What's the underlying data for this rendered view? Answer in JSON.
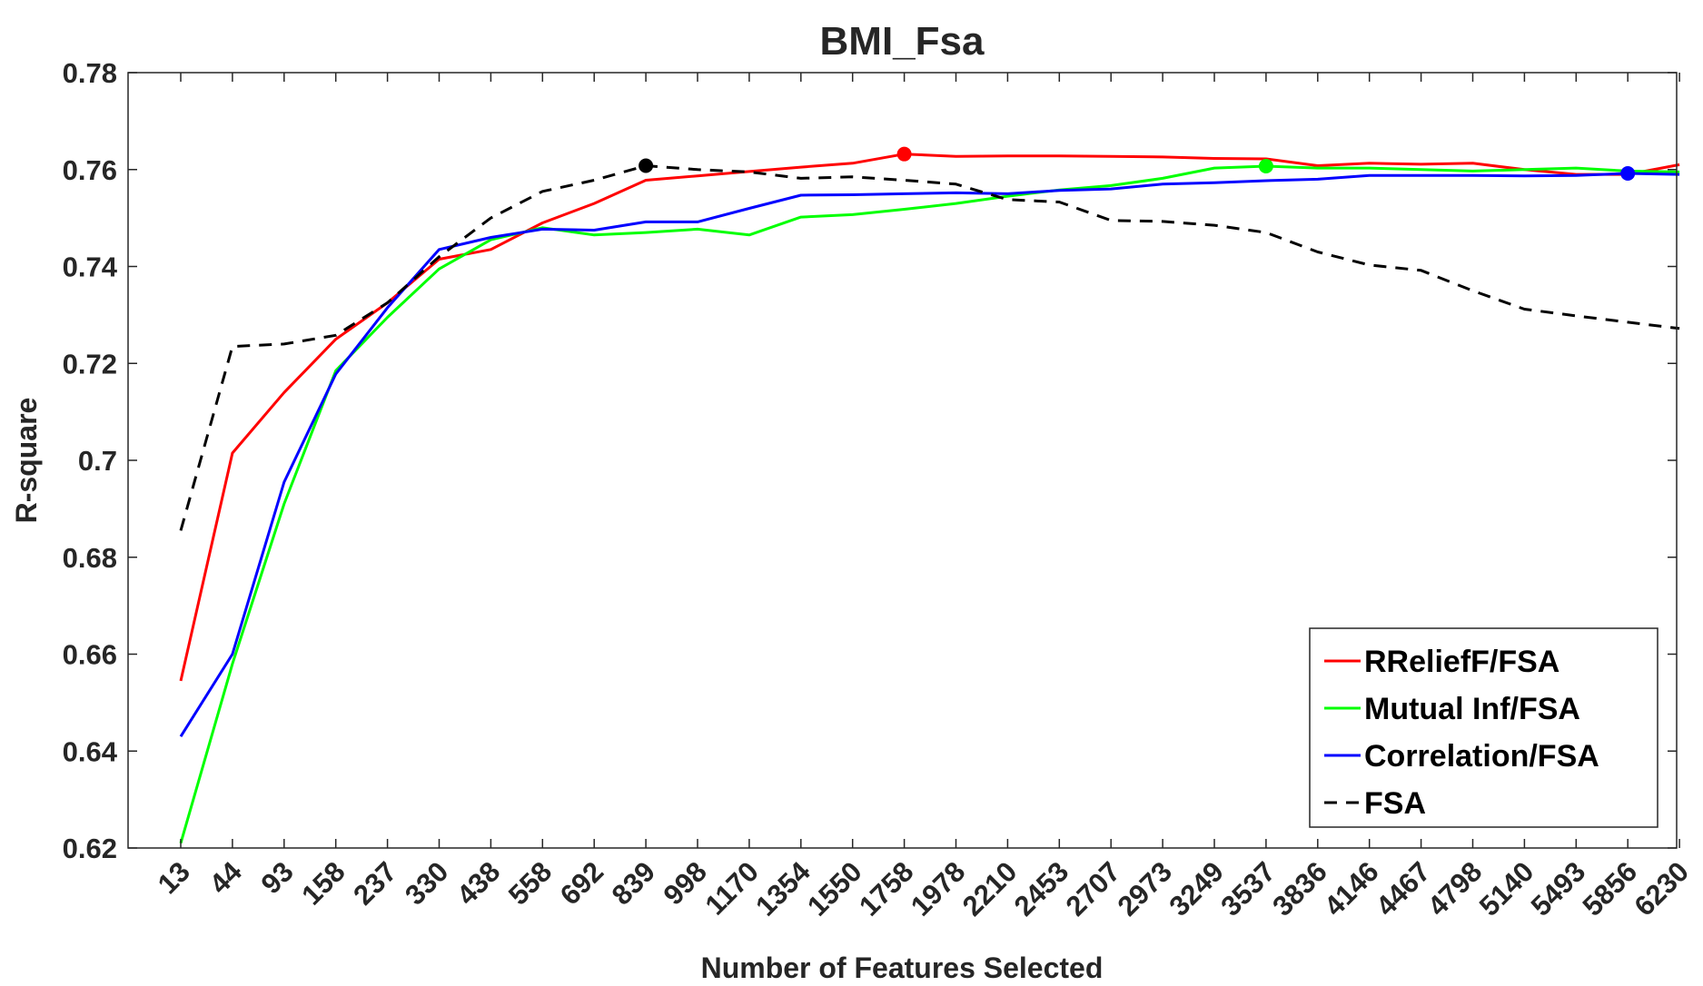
{
  "chart_data": {
    "type": "line",
    "title": "BMI_Fsa",
    "xlabel": "Number of Features Selected",
    "ylabel": "R-square",
    "ylim": [
      0.62,
      0.78
    ],
    "yticks": [
      "0.62",
      "0.64",
      "0.66",
      "0.68",
      "0.7",
      "0.72",
      "0.74",
      "0.76",
      "0.78"
    ],
    "ytick_values": [
      0.62,
      0.64,
      0.66,
      0.68,
      0.7,
      0.72,
      0.74,
      0.76,
      0.78
    ],
    "categories": [
      "13",
      "44",
      "93",
      "158",
      "237",
      "330",
      "438",
      "558",
      "692",
      "839",
      "998",
      "1170",
      "1354",
      "1550",
      "1758",
      "1978",
      "2210",
      "2453",
      "2707",
      "2973",
      "3249",
      "3537",
      "3836",
      "4146",
      "4467",
      "4798",
      "5140",
      "5493",
      "5856",
      "6230"
    ],
    "grid": false,
    "legend_position": "bottom-right",
    "series": [
      {
        "name": "RReliefF/FSA",
        "color": "#ff0000",
        "dash": false,
        "values": [
          0.6545,
          0.7015,
          0.714,
          0.725,
          0.7325,
          0.7415,
          0.7435,
          0.749,
          0.753,
          0.7578,
          0.7587,
          0.7596,
          0.7605,
          0.7613,
          0.7632,
          0.7627,
          0.7628,
          0.7628,
          0.7627,
          0.7626,
          0.7623,
          0.7622,
          0.7608,
          0.7613,
          0.7611,
          0.7613,
          0.76,
          0.759,
          0.759,
          0.761
        ],
        "max_index": 14
      },
      {
        "name": "Mutual Inf/FSA",
        "color": "#00ff00",
        "dash": false,
        "values": [
          0.621,
          0.658,
          0.691,
          0.7185,
          0.7295,
          0.7395,
          0.7455,
          0.748,
          0.7465,
          0.747,
          0.7477,
          0.7465,
          0.7502,
          0.7507,
          0.7518,
          0.753,
          0.7545,
          0.7558,
          0.7567,
          0.7582,
          0.7603,
          0.7607,
          0.7603,
          0.7603,
          0.76,
          0.7597,
          0.76,
          0.7603,
          0.7597,
          0.7595
        ],
        "max_index": 21
      },
      {
        "name": "Correlation/FSA",
        "color": "#0000ff",
        "dash": false,
        "values": [
          0.643,
          0.66,
          0.6955,
          0.7178,
          0.7315,
          0.7435,
          0.746,
          0.7477,
          0.7475,
          0.7492,
          0.7492,
          0.752,
          0.7547,
          0.7548,
          0.755,
          0.7552,
          0.755,
          0.7557,
          0.756,
          0.757,
          0.7573,
          0.7577,
          0.758,
          0.7588,
          0.7588,
          0.7588,
          0.7587,
          0.7588,
          0.7592,
          0.759
        ],
        "max_index": 28
      },
      {
        "name": "FSA",
        "color": "#000000",
        "dash": true,
        "values": [
          0.6855,
          0.7235,
          0.724,
          0.7258,
          0.7325,
          0.742,
          0.75,
          0.7555,
          0.7578,
          0.7608,
          0.76,
          0.7595,
          0.7582,
          0.7585,
          0.7578,
          0.757,
          0.7538,
          0.7533,
          0.7495,
          0.7493,
          0.7485,
          0.747,
          0.743,
          0.7403,
          0.7392,
          0.735,
          0.7312,
          0.7298,
          0.7285,
          0.7272
        ],
        "max_index": 9
      }
    ]
  }
}
